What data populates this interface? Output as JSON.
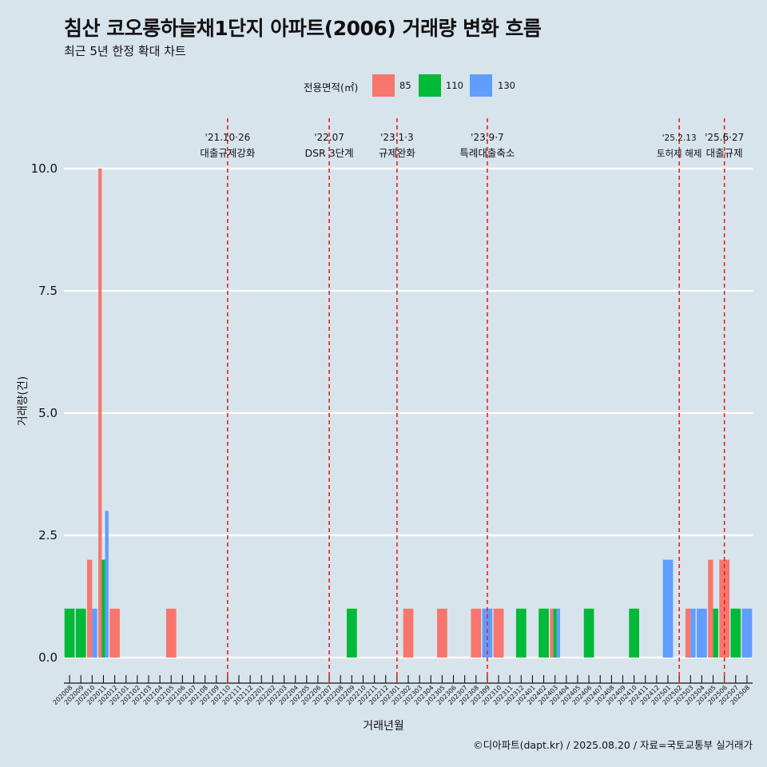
{
  "chart_data": {
    "type": "bar",
    "title": "침산 코오롱하늘채1단지 아파트(2006) 거래량 변화 흐름",
    "subtitle": "최근 5년 한정 확대 차트",
    "xlabel": "거래년월",
    "ylabel": "거래량(건)",
    "caption": "©디아파트(dapt.kr) / 2025.08.20 / 자료=국토교통부 실거래가",
    "legend_title": "전용면적(㎡)",
    "legend_position": "top",
    "ylim": [
      -0.5,
      10.5
    ],
    "yticks": [
      0.0,
      2.5,
      5.0,
      7.5,
      10.0
    ],
    "ytick_labels": [
      "0.0",
      "2.5",
      "5.0",
      "7.5",
      "10.0"
    ],
    "grid": true,
    "categories": [
      "202008",
      "202009",
      "202010",
      "202011",
      "202012",
      "202101",
      "202102",
      "202103",
      "202104",
      "202105",
      "202106",
      "202107",
      "202108",
      "202109",
      "202110",
      "202111",
      "202112",
      "202201",
      "202202",
      "202203",
      "202204",
      "202205",
      "202206",
      "202207",
      "202208",
      "202209",
      "202210",
      "202211",
      "202212",
      "202301",
      "202302",
      "202303",
      "202304",
      "202305",
      "202306",
      "202307",
      "202308",
      "202309",
      "202310",
      "202311",
      "202312",
      "202401",
      "202402",
      "202403",
      "202404",
      "202405",
      "202406",
      "202407",
      "202408",
      "202409",
      "202410",
      "202411",
      "202412",
      "202501",
      "202502",
      "202503",
      "202504",
      "202505",
      "202506",
      "202507",
      "202508"
    ],
    "series": [
      {
        "name": "85",
        "color": "#F8766D",
        "values": [
          0,
          0,
          2,
          10,
          1,
          0,
          0,
          0,
          0,
          1,
          0,
          0,
          0,
          0,
          0,
          0,
          0,
          0,
          0,
          0,
          0,
          0,
          0,
          0,
          0,
          0,
          0,
          0,
          0,
          0,
          1,
          0,
          0,
          1,
          0,
          0,
          1,
          0,
          1,
          0,
          0,
          0,
          0,
          1,
          0,
          0,
          0,
          0,
          0,
          0,
          0,
          0,
          0,
          0,
          0,
          1,
          0,
          2,
          2,
          0,
          0
        ]
      },
      {
        "name": "110",
        "color": "#00BA38",
        "values": [
          1,
          1,
          0,
          2,
          0,
          0,
          0,
          0,
          0,
          0,
          0,
          0,
          0,
          0,
          0,
          0,
          0,
          0,
          0,
          0,
          0,
          0,
          0,
          0,
          0,
          1,
          0,
          0,
          0,
          0,
          0,
          0,
          0,
          0,
          0,
          0,
          0,
          0,
          0,
          0,
          1,
          0,
          1,
          1,
          0,
          0,
          1,
          0,
          0,
          0,
          1,
          0,
          0,
          0,
          0,
          0,
          0,
          1,
          0,
          1,
          0
        ]
      },
      {
        "name": "130",
        "color": "#619CFF",
        "values": [
          0,
          0,
          1,
          3,
          0,
          0,
          0,
          0,
          0,
          0,
          0,
          0,
          0,
          0,
          0,
          0,
          0,
          0,
          0,
          0,
          0,
          0,
          0,
          0,
          0,
          0,
          0,
          0,
          0,
          0,
          0,
          0,
          0,
          0,
          0,
          0,
          0,
          1,
          0,
          0,
          0,
          0,
          0,
          1,
          0,
          0,
          0,
          0,
          0,
          0,
          0,
          0,
          0,
          2,
          0,
          1,
          1,
          0,
          0,
          0,
          1
        ]
      }
    ],
    "events": [
      {
        "month": "202110",
        "date": "'21.10·26",
        "label": "대출규제강화"
      },
      {
        "month": "202207",
        "date": "'22.07",
        "label": "DSR 3단계"
      },
      {
        "month": "202301",
        "date": "'23.1·3",
        "label": "규제완화"
      },
      {
        "month": "202309",
        "date": "'23.9·7",
        "label": "특례대출축소"
      },
      {
        "month": "202502",
        "date": "'25.2.13",
        "label": "토허제 해제"
      },
      {
        "month": "202506",
        "date": "'25.6·27",
        "label": "대출규제"
      }
    ]
  }
}
